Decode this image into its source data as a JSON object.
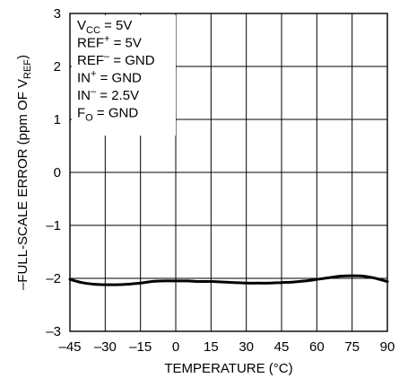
{
  "chart_data": {
    "type": "line",
    "title": "",
    "xlabel": "TEMPERATURE (°C)",
    "ylabel": {
      "main": "–FULL-SCALE ERROR (ppm OF V",
      "sub": "REF",
      "end": ")"
    },
    "xlim": [
      -45,
      90
    ],
    "ylim": [
      -3,
      3
    ],
    "x_ticks": [
      "–45",
      "–30",
      "–15",
      "0",
      "15",
      "30",
      "45",
      "60",
      "75",
      "90"
    ],
    "y_ticks": [
      "3",
      "2",
      "1",
      "0",
      "–1",
      "–2",
      "–3"
    ],
    "grid": true,
    "conditions": [
      {
        "base": "V",
        "sub": "CC",
        "sup": "",
        "rest": " = 5V"
      },
      {
        "base": "REF",
        "sub": "",
        "sup": "+",
        "rest": " = 5V"
      },
      {
        "base": "REF",
        "sub": "",
        "sup": "–",
        "rest": " = GND"
      },
      {
        "base": "IN",
        "sub": "",
        "sup": "+",
        "rest": " = GND"
      },
      {
        "base": "IN",
        "sub": "",
        "sup": "–",
        "rest": " = 2.5V"
      },
      {
        "base": "F",
        "sub": "O",
        "sup": "",
        "rest": " = GND"
      }
    ],
    "series": [
      {
        "x": [
          -45,
          -40,
          -35,
          -30,
          -25,
          -20,
          -15,
          -10,
          -5,
          0,
          5,
          10,
          15,
          20,
          25,
          30,
          35,
          40,
          45,
          50,
          55,
          60,
          65,
          70,
          75,
          80,
          85,
          90
        ],
        "y": [
          -2.02,
          -2.08,
          -2.11,
          -2.12,
          -2.12,
          -2.11,
          -2.09,
          -2.06,
          -2.05,
          -2.05,
          -2.05,
          -2.06,
          -2.06,
          -2.07,
          -2.08,
          -2.09,
          -2.09,
          -2.09,
          -2.08,
          -2.07,
          -2.05,
          -2.02,
          -1.99,
          -1.96,
          -1.95,
          -1.96,
          -2.0,
          -2.06
        ]
      }
    ],
    "colors": {
      "line": "#000000",
      "grid": "#000000",
      "background": "#ffffff"
    }
  }
}
